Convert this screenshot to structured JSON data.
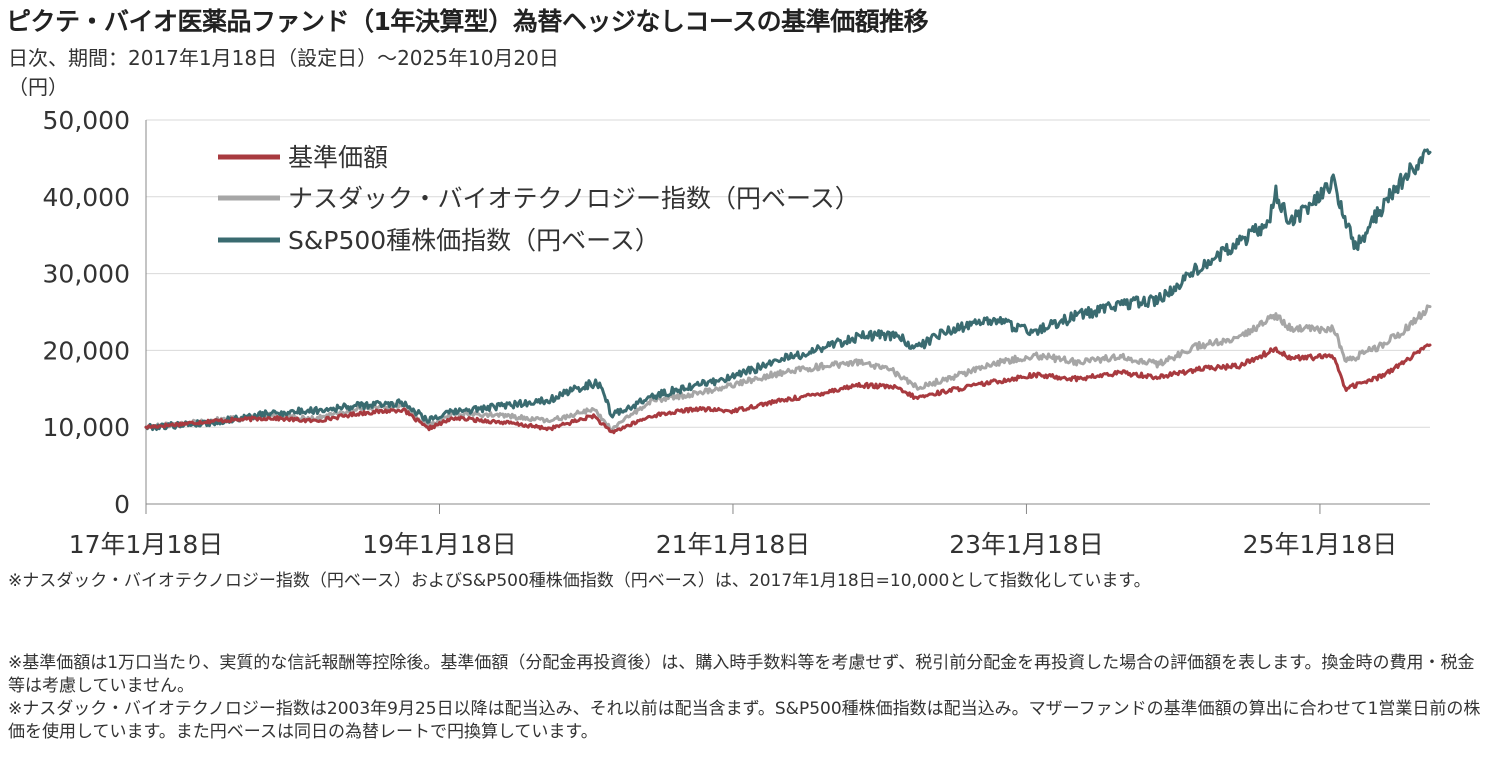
{
  "title": "ピクテ・バイオ医薬品ファンド（1年決算型）為替ヘッジなしコースの基準価額推移",
  "subtitle": "日次、期間：2017年1月18日（設定日）～2025年10月20日",
  "chart_data": {
    "type": "line",
    "ylabel": "（円）",
    "ylim": [
      0,
      50000
    ],
    "yticks": [
      0,
      10000,
      20000,
      30000,
      40000,
      50000
    ],
    "ytick_labels": [
      "0",
      "10,000",
      "20,000",
      "30,000",
      "40,000",
      "50,000"
    ],
    "xlim": [
      2017.05,
      2025.8
    ],
    "xticks": [
      2017.05,
      2019.05,
      2021.05,
      2023.05,
      2025.05
    ],
    "xtick_labels": [
      "17年1月18日",
      "19年1月18日",
      "21年1月18日",
      "23年1月18日",
      "25年1月18日"
    ],
    "grid": "horizontal",
    "legend_position": "top-left",
    "series": [
      {
        "name": "基準価額",
        "color": "#a83a3f",
        "points": [
          [
            2017.05,
            10000
          ],
          [
            2017.5,
            10800
          ],
          [
            2017.9,
            11200
          ],
          [
            2018.2,
            10800
          ],
          [
            2018.5,
            11800
          ],
          [
            2018.8,
            12300
          ],
          [
            2018.97,
            9800
          ],
          [
            2019.15,
            11200
          ],
          [
            2019.5,
            10600
          ],
          [
            2019.8,
            9800
          ],
          [
            2020.1,
            11500
          ],
          [
            2020.22,
            9300
          ],
          [
            2020.5,
            11500
          ],
          [
            2020.8,
            12400
          ],
          [
            2021.05,
            12100
          ],
          [
            2021.3,
            13200
          ],
          [
            2021.6,
            14200
          ],
          [
            2021.9,
            15500
          ],
          [
            2022.15,
            15200
          ],
          [
            2022.3,
            13800
          ],
          [
            2022.5,
            14700
          ],
          [
            2022.8,
            15800
          ],
          [
            2023.1,
            16800
          ],
          [
            2023.4,
            16300
          ],
          [
            2023.7,
            17100
          ],
          [
            2023.95,
            16500
          ],
          [
            2024.2,
            17500
          ],
          [
            2024.5,
            18000
          ],
          [
            2024.75,
            20200
          ],
          [
            2024.85,
            19000
          ],
          [
            2025.15,
            19200
          ],
          [
            2025.22,
            15000
          ],
          [
            2025.45,
            16500
          ],
          [
            2025.6,
            18200
          ],
          [
            2025.8,
            20700
          ]
        ]
      },
      {
        "name": "ナスダック・バイオテクノロジー指数（円ベース）",
        "color": "#a6a6a6",
        "points": [
          [
            2017.05,
            10000
          ],
          [
            2017.5,
            10900
          ],
          [
            2017.9,
            11600
          ],
          [
            2018.2,
            11100
          ],
          [
            2018.5,
            12400
          ],
          [
            2018.8,
            12900
          ],
          [
            2018.97,
            10100
          ],
          [
            2019.15,
            11800
          ],
          [
            2019.5,
            11500
          ],
          [
            2019.8,
            10800
          ],
          [
            2020.1,
            12400
          ],
          [
            2020.22,
            9700
          ],
          [
            2020.5,
            13500
          ],
          [
            2020.8,
            14400
          ],
          [
            2021.05,
            15500
          ],
          [
            2021.3,
            16800
          ],
          [
            2021.6,
            17800
          ],
          [
            2021.9,
            18500
          ],
          [
            2022.15,
            17200
          ],
          [
            2022.3,
            15200
          ],
          [
            2022.5,
            16200
          ],
          [
            2022.8,
            18200
          ],
          [
            2023.1,
            19400
          ],
          [
            2023.4,
            18500
          ],
          [
            2023.7,
            19200
          ],
          [
            2023.95,
            18200
          ],
          [
            2024.2,
            20500
          ],
          [
            2024.5,
            21500
          ],
          [
            2024.75,
            24700
          ],
          [
            2024.85,
            22800
          ],
          [
            2025.15,
            22700
          ],
          [
            2025.22,
            18500
          ],
          [
            2025.45,
            20500
          ],
          [
            2025.6,
            22200
          ],
          [
            2025.8,
            25700
          ]
        ]
      },
      {
        "name": "S&P500種株価指数（円ベース）",
        "color": "#3a6b70",
        "points": [
          [
            2017.05,
            10000
          ],
          [
            2017.5,
            10600
          ],
          [
            2017.9,
            11800
          ],
          [
            2018.2,
            12200
          ],
          [
            2018.5,
            12800
          ],
          [
            2018.8,
            13200
          ],
          [
            2018.97,
            11000
          ],
          [
            2019.15,
            12000
          ],
          [
            2019.5,
            12800
          ],
          [
            2019.8,
            13600
          ],
          [
            2020.05,
            15500
          ],
          [
            2020.15,
            15700
          ],
          [
            2020.22,
            11500
          ],
          [
            2020.5,
            14000
          ],
          [
            2020.8,
            15500
          ],
          [
            2021.05,
            16500
          ],
          [
            2021.3,
            18300
          ],
          [
            2021.6,
            20000
          ],
          [
            2021.9,
            21800
          ],
          [
            2022.15,
            22000
          ],
          [
            2022.3,
            20300
          ],
          [
            2022.5,
            22500
          ],
          [
            2022.8,
            24000
          ],
          [
            2023.1,
            22500
          ],
          [
            2023.4,
            24500
          ],
          [
            2023.7,
            26000
          ],
          [
            2023.95,
            26500
          ],
          [
            2024.2,
            30500
          ],
          [
            2024.45,
            33500
          ],
          [
            2024.7,
            36500
          ],
          [
            2024.75,
            40500
          ],
          [
            2024.85,
            36500
          ],
          [
            2025.15,
            42000
          ],
          [
            2025.22,
            36500
          ],
          [
            2025.3,
            33500
          ],
          [
            2025.45,
            38000
          ],
          [
            2025.6,
            42000
          ],
          [
            2025.8,
            45800
          ]
        ]
      }
    ]
  },
  "note_index": "※ナスダック・バイオテクノロジー指数（円ベース）およびS&P500種株価指数（円ベース）は、2017年1月18日=10,000として指数化しています。",
  "notes": [
    "※基準価額は1万口当たり、実質的な信託報酬等控除後。基準価額（分配金再投資後）は、購入時手数料等を考慮せず、税引前分配金を再投資した場合の評価額を表します。換金時の費用・税金等は考慮していません。",
    "※ナスダック・バイオテクノロジー指数は2003年9月25日以降は配当込み、それ以前は配当含まず。S&P500種株価指数は配当込み。マザーファンドの基準価額の算出に合わせて1営業日前の株価を使用しています。また円ベースは同日の為替レートで円換算しています。"
  ]
}
